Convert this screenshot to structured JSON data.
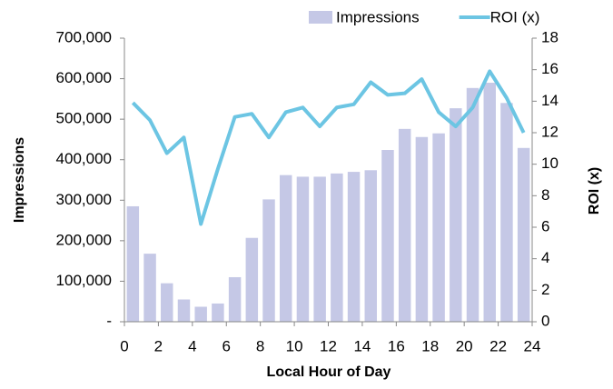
{
  "chart_data": {
    "type": "bar_line",
    "x_label": "Local Hour of Day",
    "y_label": "Impressions",
    "y2_label": "ROI (x)",
    "x": [
      0.5,
      1.5,
      2.5,
      3.5,
      4.5,
      5.5,
      6.5,
      7.5,
      8.5,
      9.5,
      10.5,
      11.5,
      12.5,
      13.5,
      14.5,
      15.5,
      16.5,
      17.5,
      18.5,
      19.5,
      20.5,
      21.5,
      22.5,
      23.5
    ],
    "series": [
      {
        "name": "Impressions",
        "type": "bar",
        "color": "#c5c8e6",
        "values": [
          285000,
          168000,
          95000,
          55000,
          37000,
          45000,
          110000,
          207000,
          302000,
          362000,
          358000,
          358000,
          366000,
          370000,
          374000,
          424000,
          476000,
          456000,
          465000,
          527000,
          577000,
          590000,
          540000,
          429000
        ]
      },
      {
        "name": "ROI (x)",
        "type": "line",
        "axis": "y2",
        "color": "#6cc5e3",
        "values": [
          13.9,
          12.8,
          10.7,
          11.7,
          6.2,
          9.7,
          13.0,
          13.2,
          11.7,
          13.3,
          13.6,
          12.4,
          13.6,
          13.8,
          15.2,
          14.4,
          14.5,
          15.4,
          13.3,
          12.4,
          13.6,
          15.9,
          14.2,
          12.0
        ]
      }
    ],
    "xlim": [
      0,
      24
    ],
    "xticks": [
      0,
      2,
      4,
      6,
      8,
      10,
      12,
      14,
      16,
      18,
      20,
      22,
      24
    ],
    "ylim": [
      0,
      700000
    ],
    "yticks": [
      {
        "value": 0,
        "label": "-"
      },
      {
        "value": 100000,
        "label": "100,000"
      },
      {
        "value": 200000,
        "label": "200,000"
      },
      {
        "value": 300000,
        "label": "300,000"
      },
      {
        "value": 400000,
        "label": "400,000"
      },
      {
        "value": 500000,
        "label": "500,000"
      },
      {
        "value": 600000,
        "label": "600,000"
      },
      {
        "value": 700000,
        "label": "700,000"
      }
    ],
    "y2lim": [
      0,
      18
    ],
    "y2ticks": [
      0,
      2,
      4,
      6,
      8,
      10,
      12,
      14,
      16,
      18
    ],
    "grid": false,
    "legend": "top-right"
  }
}
